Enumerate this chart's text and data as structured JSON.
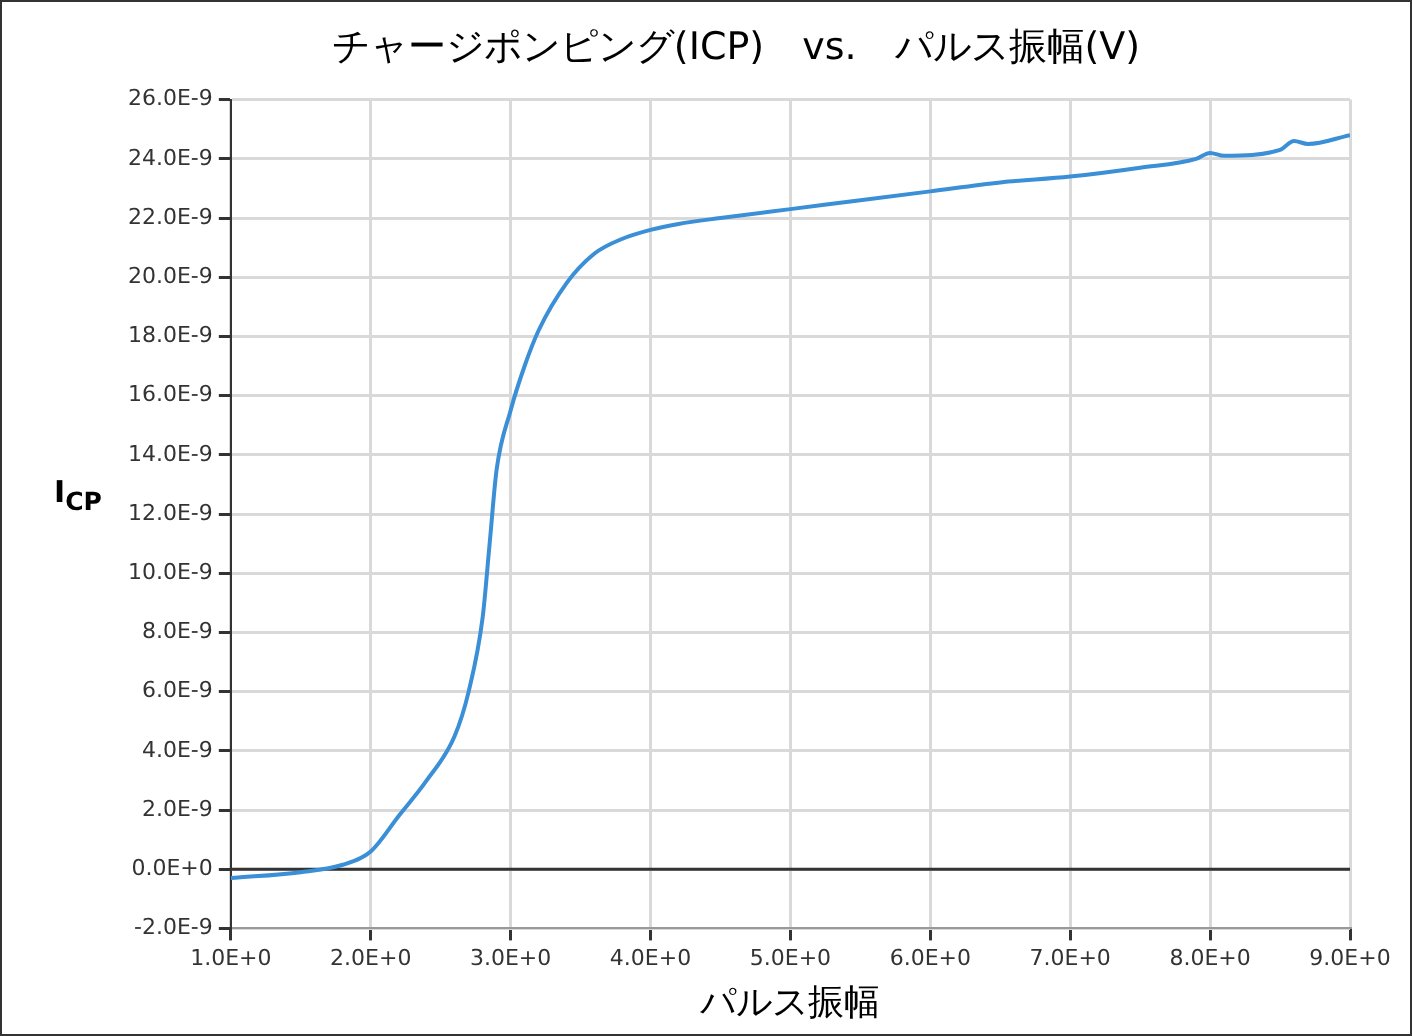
{
  "chart_data": {
    "type": "line",
    "title": "チャージポンピング(ICP)　vs.　パルス振幅(V)",
    "xlabel": "パルス振幅",
    "ylabel": "I$_{CP}$",
    "x": [
      1.0,
      1.5,
      1.8,
      2.0,
      2.2,
      2.4,
      2.6,
      2.7,
      2.8,
      2.85,
      2.9,
      3.0,
      3.1,
      3.2,
      3.4,
      3.6,
      3.8,
      4.0,
      4.2,
      4.5,
      5.0,
      5.5,
      6.0,
      6.5,
      7.0,
      7.5,
      7.9,
      8.0,
      8.1,
      8.5,
      8.6,
      8.7,
      9.0
    ],
    "series": [
      {
        "color": "#3a8fd6",
        "values": [
          -3e-10,
          -1e-10,
          1.5e-10,
          6e-10,
          1.8e-09,
          3e-09,
          4.5e-09,
          6e-09,
          8.5e-09,
          1.1e-08,
          1.35e-08,
          1.55e-08,
          1.7e-08,
          1.82e-08,
          1.98e-08,
          2.08e-08,
          2.13e-08,
          2.16e-08,
          2.18e-08,
          2.2e-08,
          2.23e-08,
          2.26e-08,
          2.29e-08,
          2.32e-08,
          2.34e-08,
          2.37e-08,
          2.4e-08,
          2.42e-08,
          2.41e-08,
          2.43e-08,
          2.46e-08,
          2.45e-08,
          2.48e-08
        ]
      }
    ],
    "xlim": [
      1,
      9
    ],
    "xticks": [
      {
        "value": 1,
        "label": "1.0E+0"
      },
      {
        "value": 2,
        "label": "2.0E+0"
      },
      {
        "value": 3,
        "label": "3.0E+0"
      },
      {
        "value": 4,
        "label": "4.0E+0"
      },
      {
        "value": 5,
        "label": "5.0E+0"
      },
      {
        "value": 6,
        "label": "6.0E+0"
      },
      {
        "value": 7,
        "label": "7.0E+0"
      },
      {
        "value": 8,
        "label": "8.0E+0"
      },
      {
        "value": 9,
        "label": "9.0E+0"
      }
    ],
    "ylim": [
      -2e-09,
      2.6e-08
    ],
    "yticks": [
      {
        "value": -2e-09,
        "label": "-2.0E-9"
      },
      {
        "value": 0,
        "label": "0.0E+0"
      },
      {
        "value": 2e-09,
        "label": "2.0E-9"
      },
      {
        "value": 4e-09,
        "label": "4.0E-9"
      },
      {
        "value": 6e-09,
        "label": "6.0E-9"
      },
      {
        "value": 8e-09,
        "label": "8.0E-9"
      },
      {
        "value": 1e-08,
        "label": "10.0E-9"
      },
      {
        "value": 1.2e-08,
        "label": "12.0E-9"
      },
      {
        "value": 1.4e-08,
        "label": "14.0E-9"
      },
      {
        "value": 1.6e-08,
        "label": "16.0E-9"
      },
      {
        "value": 1.8e-08,
        "label": "18.0E-9"
      },
      {
        "value": 2e-08,
        "label": "20.0E-9"
      },
      {
        "value": 2.2e-08,
        "label": "22.0E-9"
      },
      {
        "value": 2.4e-08,
        "label": "24.0E-9"
      },
      {
        "value": 2.6e-08,
        "label": "26.0E-9"
      }
    ],
    "ref_lines": [
      {
        "axis": "y",
        "value": 0,
        "color": "#333333"
      }
    ],
    "grid": true,
    "legend": false,
    "marker": "none",
    "line_style": "solid"
  }
}
